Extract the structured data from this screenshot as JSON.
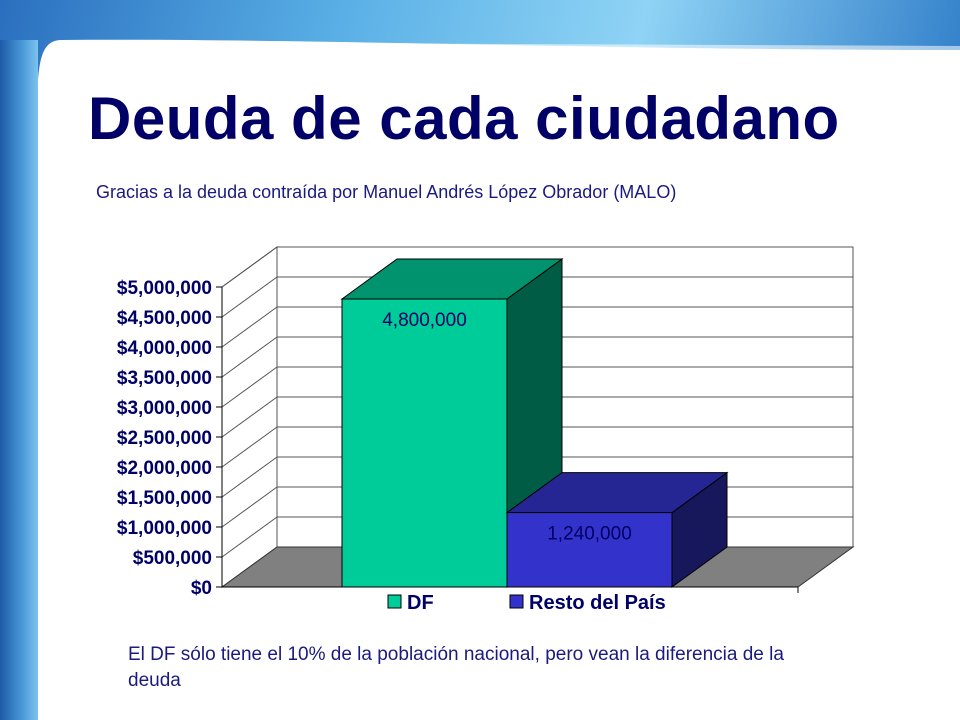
{
  "slide": {
    "title": "Deuda de cada ciudadano",
    "subtitle": "Gracias a la deuda contraída por Manuel Andrés López Obrador (MALO)",
    "footnote": "El DF sólo tiene el 10% de la población nacional, pero vean la diferencia de la deuda"
  },
  "colors": {
    "title": "#000066",
    "text": "#1a1a80",
    "series_df": "#00cc99",
    "series_resto": "#3333cc",
    "floor": "#808080"
  },
  "chart_data": {
    "type": "bar",
    "three_d": true,
    "title": "",
    "xlabel": "",
    "ylabel": "",
    "categories": [
      ""
    ],
    "series": [
      {
        "name": "DF",
        "values": [
          4800000
        ],
        "label": "4,800,000",
        "color": "#00cc99"
      },
      {
        "name": "Resto del País",
        "values": [
          1240000
        ],
        "label": "1,240,000",
        "color": "#3333cc"
      }
    ],
    "ylim": [
      0,
      5000000
    ],
    "y_ticks": [
      0,
      500000,
      1000000,
      1500000,
      2000000,
      2500000,
      3000000,
      3500000,
      4000000,
      4500000,
      5000000
    ],
    "y_tick_labels": [
      "$0",
      "$500,000",
      "$1,000,000",
      "$1,500,000",
      "$2,000,000",
      "$2,500,000",
      "$3,000,000",
      "$3,500,000",
      "$4,000,000",
      "$4,500,000",
      "$5,000,000"
    ],
    "grid": true,
    "legend": "bottom"
  }
}
